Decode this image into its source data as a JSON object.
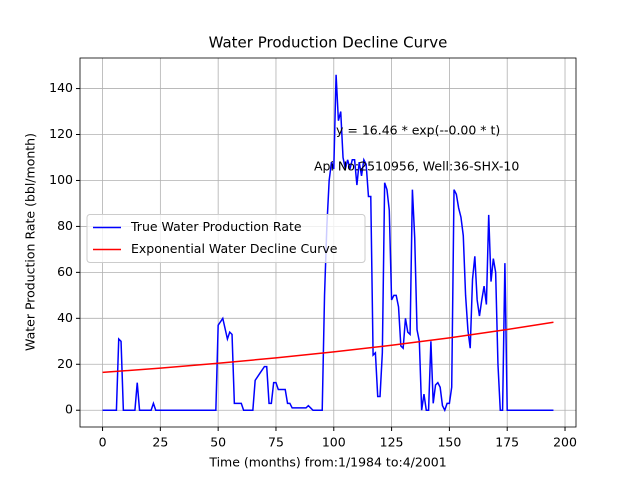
{
  "chart_data": {
    "type": "line",
    "title": "Water Production Decline Curve",
    "xlabel": "Time (months) from:1/1984 to:4/2001",
    "ylabel": "Water Production Rate (bbl/month)",
    "annotations": [
      "y = 16.46 * exp(--0.00 * t)",
      "Api No:2510956, Well:36-SHX-10"
    ],
    "xlim": [
      -9.75,
      204.75
    ],
    "xticks": [
      0,
      25,
      50,
      75,
      100,
      125,
      150,
      175,
      200
    ],
    "ylim": [
      -7.3,
      153.3
    ],
    "yticks": [
      0,
      20,
      40,
      60,
      80,
      100,
      120,
      140
    ],
    "grid": true,
    "legend": "center left",
    "series": [
      {
        "name": "True Water Production Rate",
        "color": "#0000ff",
        "x": [
          0,
          6,
          7,
          8,
          9,
          14,
          15,
          16,
          21,
          22,
          23,
          49,
          50,
          52,
          54,
          55,
          56,
          57,
          60,
          61,
          65,
          66,
          68,
          70,
          71,
          72,
          73,
          74,
          75,
          76,
          79,
          80,
          81,
          82,
          88,
          89,
          90,
          91,
          95,
          96,
          97,
          98,
          99,
          100,
          101,
          102,
          103,
          104,
          105,
          106,
          107,
          108,
          109,
          110,
          111,
          112,
          113,
          114,
          115,
          116,
          117,
          118,
          119,
          120,
          121,
          122,
          123,
          124,
          125,
          126,
          127,
          128,
          129,
          130,
          131,
          132,
          133,
          134,
          135,
          136,
          137,
          138,
          139,
          140,
          141,
          142,
          143,
          144,
          145,
          146,
          147,
          148,
          149,
          150,
          151,
          152,
          153,
          154,
          155,
          156,
          157,
          158,
          159,
          160,
          161,
          162,
          163,
          164,
          165,
          166,
          167,
          168,
          169,
          170,
          171,
          172,
          173,
          174,
          175,
          176,
          195
        ],
        "values": [
          0,
          0,
          31,
          30,
          0,
          0,
          12,
          0,
          0,
          3,
          0,
          0,
          37,
          40,
          31,
          34,
          33,
          3,
          3,
          0,
          0,
          13,
          16,
          19,
          19,
          3,
          3,
          12,
          12,
          9,
          9,
          3,
          3,
          1,
          1,
          2,
          1,
          0,
          0,
          50,
          80,
          100,
          108,
          105,
          146,
          126,
          130,
          110,
          105,
          109,
          105,
          109,
          109,
          98,
          108,
          102,
          109,
          107,
          93,
          93,
          24,
          25,
          6,
          6,
          25,
          99,
          96,
          87,
          48,
          50,
          50,
          45,
          28,
          27,
          40,
          34,
          33,
          96,
          75,
          35,
          30,
          0,
          7,
          0,
          0,
          30,
          3,
          11,
          12,
          10,
          2,
          0,
          3,
          3,
          10,
          96,
          94,
          88,
          84,
          76,
          50,
          35,
          27,
          57,
          67,
          48,
          41,
          48,
          54,
          46,
          85,
          56,
          66,
          60,
          20,
          0,
          0,
          64,
          0,
          0,
          0
        ]
      },
      {
        "name": "Exponential Water Decline Curve",
        "color": "#ff0000",
        "x": [
          0,
          25,
          50,
          75,
          100,
          125,
          150,
          175,
          195
        ],
        "values": [
          16.46,
          18.34,
          20.44,
          22.78,
          25.38,
          28.28,
          31.51,
          35.12,
          38.29
        ]
      }
    ]
  }
}
